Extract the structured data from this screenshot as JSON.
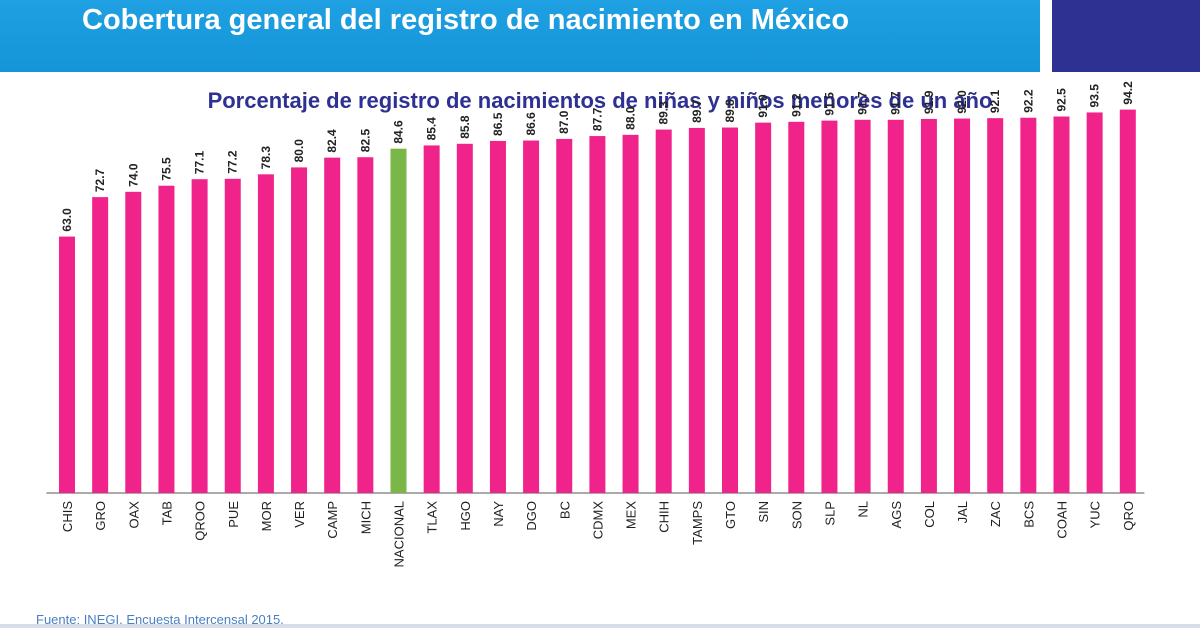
{
  "header": {
    "title": "Cobertura general del registro de nacimiento en México",
    "bar_color": "#1a9ae0",
    "accent_color": "#2e3192"
  },
  "footer": {
    "source": "Fuente: INEGI. Encuesta Intercensal 2015."
  },
  "chart_data": {
    "type": "bar",
    "title": "Porcentaje de registro de nacimientos de niñas y niños menores de un año",
    "xlabel": "",
    "ylabel": "",
    "ylim": [
      0,
      100
    ],
    "grid": false,
    "legend": "none",
    "categories": [
      "CHIS",
      "GRO",
      "OAX",
      "TAB",
      "QROO",
      "PUE",
      "MOR",
      "VER",
      "CAMP",
      "MICH",
      "NACIONAL",
      "TLAX",
      "HGO",
      "NAY",
      "DGO",
      "BC",
      "CDMX",
      "MEX",
      "CHIH",
      "TAMPS",
      "GTO",
      "SIN",
      "SON",
      "SLP",
      "NL",
      "AGS",
      "COL",
      "JAL",
      "ZAC",
      "BCS",
      "COAH",
      "YUC",
      "QRO"
    ],
    "values": [
      63.0,
      72.7,
      74.0,
      75.5,
      77.1,
      77.2,
      78.3,
      80.0,
      82.4,
      82.5,
      84.6,
      85.4,
      85.8,
      86.5,
      86.6,
      87.0,
      87.7,
      88.0,
      89.3,
      89.7,
      89.8,
      91.0,
      91.2,
      91.5,
      91.7,
      91.7,
      91.9,
      92.0,
      92.1,
      92.2,
      92.5,
      93.5,
      94.2
    ],
    "value_labels": [
      "63.0",
      "72.7",
      "74.0",
      "75.5",
      "77.1",
      "77.2",
      "78.3",
      "80.0",
      "82.4",
      "82.5",
      "84.6",
      "85.4",
      "85.8",
      "86.5",
      "86.6",
      "87.0",
      "87.7",
      "88.0",
      "89.3",
      "89.7",
      "89.8",
      "91.0",
      "91.2",
      "91.5",
      "91.7",
      "91.7",
      "91.9",
      "92.0",
      "92.1",
      "92.2",
      "92.5",
      "93.5",
      "94.2"
    ],
    "colors": {
      "default": "#f0238a",
      "highlight": "#7ab648",
      "highlight_category": "NACIONAL",
      "axis": "#555555",
      "label": "#222222"
    }
  }
}
